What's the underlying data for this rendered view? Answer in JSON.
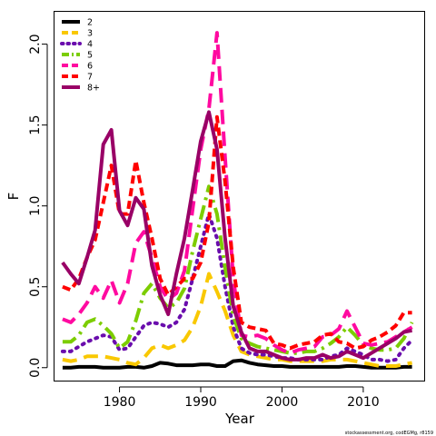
{
  "chart_data": {
    "type": "line",
    "xlabel": "Year",
    "ylabel": "F",
    "xlim": [
      1972,
      2017.5
    ],
    "ylim": [
      -0.08,
      2.2
    ],
    "x_ticks": [
      1980,
      1990,
      2000,
      2010
    ],
    "y_ticks": [
      0.0,
      0.5,
      1.0,
      1.5,
      2.0
    ],
    "x_tick_labels": [
      "1980",
      "1990",
      "2000",
      "2010"
    ],
    "y_tick_labels": [
      "0.0",
      "0.5",
      "1.0",
      "1.5",
      "2.0"
    ],
    "grid": false,
    "legend_position": "top-left",
    "credit": "stockassessment.org, codEGMg, r8159",
    "x": [
      1973,
      1974,
      1975,
      1976,
      1977,
      1978,
      1979,
      1980,
      1981,
      1982,
      1983,
      1984,
      1985,
      1986,
      1987,
      1988,
      1989,
      1990,
      1991,
      1992,
      1993,
      1994,
      1995,
      1996,
      1997,
      1998,
      1999,
      2000,
      2001,
      2002,
      2003,
      2004,
      2005,
      2006,
      2007,
      2008,
      2009,
      2010,
      2011,
      2012,
      2013,
      2014,
      2015,
      2016
    ],
    "series": [
      {
        "name": "2",
        "color": "#000000",
        "dash": "solid",
        "values": [
          0.0,
          0.0,
          0.005,
          0.005,
          0.005,
          0.0,
          0.0,
          0.0,
          0.005,
          0.005,
          0.0,
          0.01,
          0.03,
          0.025,
          0.015,
          0.015,
          0.015,
          0.02,
          0.02,
          0.01,
          0.01,
          0.04,
          0.045,
          0.03,
          0.02,
          0.015,
          0.01,
          0.01,
          0.005,
          0.005,
          0.005,
          0.005,
          0.005,
          0.005,
          0.005,
          0.01,
          0.01,
          0.005,
          0.0,
          0.0,
          0.0,
          0.0,
          0.005,
          0.005
        ]
      },
      {
        "name": "3",
        "color": "#f9c800",
        "dash": "long",
        "values": [
          0.05,
          0.04,
          0.05,
          0.07,
          0.07,
          0.07,
          0.06,
          0.05,
          0.03,
          0.02,
          0.06,
          0.12,
          0.14,
          0.12,
          0.14,
          0.17,
          0.25,
          0.38,
          0.58,
          0.47,
          0.35,
          0.2,
          0.1,
          0.08,
          0.07,
          0.06,
          0.05,
          0.05,
          0.04,
          0.04,
          0.04,
          0.04,
          0.04,
          0.05,
          0.05,
          0.05,
          0.04,
          0.03,
          0.02,
          0.01,
          0.01,
          0.01,
          0.02,
          0.03
        ]
      },
      {
        "name": "4",
        "color": "#6a0dad",
        "dash": "dot",
        "values": [
          0.1,
          0.1,
          0.13,
          0.16,
          0.18,
          0.2,
          0.19,
          0.11,
          0.12,
          0.19,
          0.26,
          0.28,
          0.27,
          0.25,
          0.28,
          0.36,
          0.55,
          0.75,
          0.95,
          0.8,
          0.5,
          0.25,
          0.12,
          0.09,
          0.08,
          0.08,
          0.07,
          0.06,
          0.06,
          0.05,
          0.05,
          0.05,
          0.05,
          0.07,
          0.08,
          0.12,
          0.1,
          0.08,
          0.05,
          0.05,
          0.04,
          0.05,
          0.12,
          0.17
        ]
      },
      {
        "name": "5",
        "color": "#7ccd00",
        "dash": "dashdot",
        "values": [
          0.16,
          0.16,
          0.2,
          0.28,
          0.3,
          0.26,
          0.21,
          0.12,
          0.16,
          0.29,
          0.46,
          0.52,
          0.43,
          0.37,
          0.4,
          0.49,
          0.72,
          0.92,
          1.12,
          0.95,
          0.62,
          0.32,
          0.18,
          0.15,
          0.13,
          0.12,
          0.11,
          0.1,
          0.09,
          0.09,
          0.1,
          0.1,
          0.12,
          0.15,
          0.19,
          0.25,
          0.2,
          0.14,
          0.12,
          0.11,
          0.11,
          0.12,
          0.18,
          0.28
        ]
      },
      {
        "name": "6",
        "color": "#ff0aa0",
        "dash": "long",
        "values": [
          0.3,
          0.28,
          0.33,
          0.4,
          0.5,
          0.43,
          0.54,
          0.4,
          0.52,
          0.77,
          0.84,
          0.68,
          0.5,
          0.42,
          0.46,
          0.6,
          0.98,
          1.35,
          1.6,
          2.07,
          1.3,
          0.55,
          0.2,
          0.19,
          0.2,
          0.18,
          0.14,
          0.11,
          0.09,
          0.11,
          0.12,
          0.13,
          0.19,
          0.2,
          0.24,
          0.35,
          0.25,
          0.15,
          0.14,
          0.15,
          0.16,
          0.19,
          0.22,
          0.25
        ]
      },
      {
        "name": "7",
        "color": "#ff0000",
        "dash": "short",
        "values": [
          0.5,
          0.48,
          0.55,
          0.68,
          0.79,
          1.02,
          1.25,
          0.95,
          0.95,
          1.28,
          1.02,
          0.8,
          0.55,
          0.45,
          0.5,
          0.55,
          0.55,
          0.65,
          0.9,
          1.55,
          1.15,
          0.62,
          0.28,
          0.25,
          0.24,
          0.23,
          0.15,
          0.14,
          0.12,
          0.14,
          0.15,
          0.16,
          0.2,
          0.21,
          0.16,
          0.15,
          0.12,
          0.13,
          0.17,
          0.19,
          0.22,
          0.26,
          0.34,
          0.34
        ]
      },
      {
        "name": "8+",
        "color": "#990066",
        "dash": "solid",
        "values": [
          0.65,
          0.58,
          0.52,
          0.68,
          0.85,
          1.38,
          1.47,
          0.97,
          0.88,
          1.05,
          0.98,
          0.63,
          0.45,
          0.33,
          0.58,
          0.8,
          1.1,
          1.4,
          1.58,
          1.35,
          0.8,
          0.38,
          0.22,
          0.12,
          0.1,
          0.1,
          0.08,
          0.06,
          0.05,
          0.05,
          0.06,
          0.06,
          0.08,
          0.06,
          0.07,
          0.1,
          0.08,
          0.06,
          0.09,
          0.12,
          0.15,
          0.18,
          0.22,
          0.23
        ]
      }
    ]
  }
}
